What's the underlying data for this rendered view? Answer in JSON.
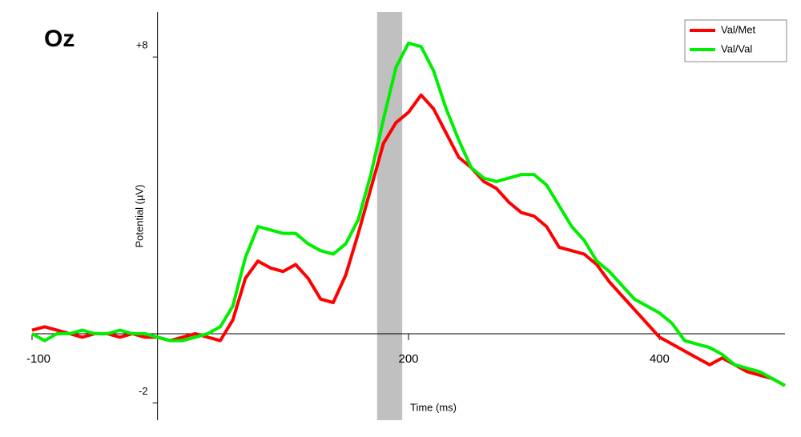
{
  "chart_data": {
    "type": "line",
    "title": "Oz",
    "x_label": "Time (ms)",
    "y_label": "Potential (µV)",
    "x": [
      -100,
      -90,
      -80,
      -70,
      -60,
      -50,
      -40,
      -30,
      -20,
      -10,
      0,
      10,
      20,
      30,
      40,
      50,
      60,
      70,
      80,
      90,
      100,
      110,
      120,
      130,
      140,
      150,
      160,
      170,
      180,
      190,
      200,
      210,
      220,
      230,
      240,
      250,
      260,
      270,
      280,
      290,
      300,
      310,
      320,
      330,
      340,
      350,
      360,
      370,
      380,
      390,
      400,
      410,
      420,
      430,
      440,
      450,
      460,
      470,
      480,
      490,
      500
    ],
    "series": [
      {
        "name": "Val/Met",
        "color": "#ff0000",
        "values": [
          0.1,
          0.2,
          0.1,
          0,
          -0.1,
          0,
          0,
          -0.1,
          0,
          -0.1,
          -0.1,
          -0.2,
          -0.1,
          0,
          -0.1,
          -0.2,
          0.4,
          1.6,
          2.1,
          1.9,
          1.8,
          2.0,
          1.6,
          1.0,
          0.9,
          1.7,
          2.9,
          4.2,
          5.5,
          6.1,
          6.4,
          6.9,
          6.5,
          5.8,
          5.1,
          4.8,
          4.4,
          4.2,
          3.8,
          3.5,
          3.4,
          3.1,
          2.5,
          2.4,
          2.3,
          2.0,
          1.5,
          1.1,
          0.7,
          0.3,
          -0.1,
          -0.3,
          -0.5,
          -0.7,
          -0.9,
          -0.7,
          -0.9,
          -1.1,
          -1.2,
          -1.3,
          -1.5
        ]
      },
      {
        "name": "Val/Val",
        "color": "#00ee00",
        "values": [
          0,
          -0.2,
          0,
          0,
          0.1,
          0,
          0,
          0.1,
          0,
          0,
          -0.1,
          -0.2,
          -0.2,
          -0.1,
          0,
          0.2,
          0.8,
          2.2,
          3.1,
          3.0,
          2.9,
          2.9,
          2.6,
          2.4,
          2.3,
          2.6,
          3.3,
          4.6,
          6.2,
          7.7,
          8.4,
          8.3,
          7.6,
          6.5,
          5.6,
          4.8,
          4.5,
          4.4,
          4.5,
          4.6,
          4.6,
          4.3,
          3.7,
          3.1,
          2.7,
          2.1,
          1.8,
          1.4,
          1.0,
          0.8,
          0.6,
          0.3,
          -0.2,
          -0.3,
          -0.4,
          -0.6,
          -0.9,
          -1.0,
          -1.1,
          -1.3,
          -1.5
        ]
      }
    ],
    "shade": [
      175,
      195
    ],
    "shade_color": "#c0c0c0",
    "xlim": [
      -100,
      500
    ],
    "ylim": [
      -2.5,
      9.3
    ],
    "xticks": [
      -100,
      200,
      400
    ],
    "yticks": [
      {
        "value": 8,
        "label": "+8"
      },
      -2
    ],
    "legend": "top-right"
  }
}
